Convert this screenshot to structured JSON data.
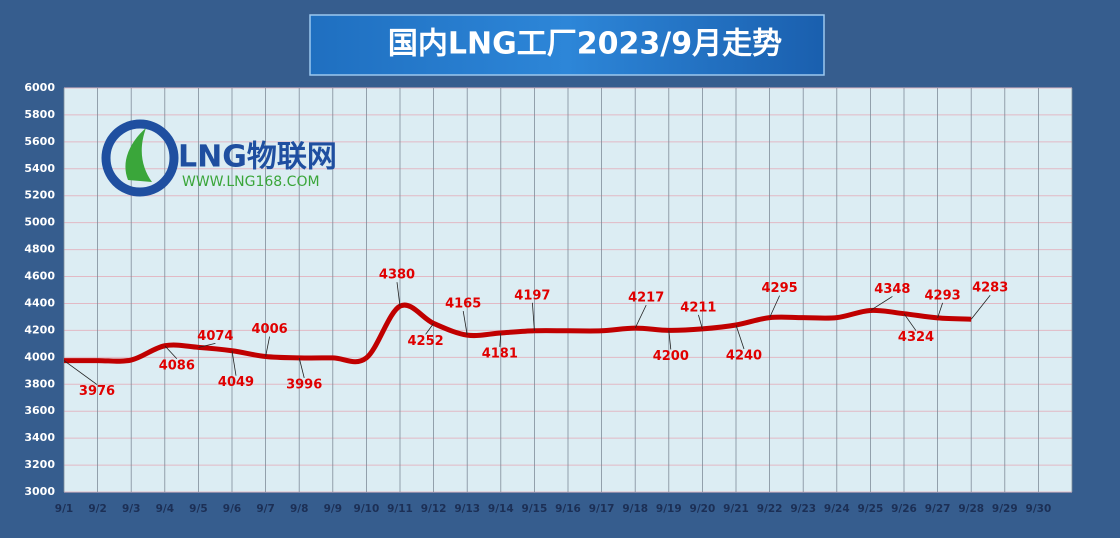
{
  "chart_data": {
    "type": "line",
    "title": "国内LNG工厂2023/9月走势",
    "logo": {
      "name": "LNG物联网",
      "url": "WWW.LNG168.COM"
    },
    "categories": [
      "9/1",
      "9/2",
      "9/3",
      "9/4",
      "9/5",
      "9/6",
      "9/7",
      "9/8",
      "9/9",
      "9/10",
      "9/11",
      "9/12",
      "9/13",
      "9/14",
      "9/15",
      "9/16",
      "9/17",
      "9/18",
      "9/19",
      "9/20",
      "9/21",
      "9/22",
      "9/23",
      "9/24",
      "9/25",
      "9/26",
      "9/27",
      "9/28",
      "9/29",
      "9/30"
    ],
    "series": [
      {
        "color": "#c00000",
        "values": [
          3976,
          3976,
          3980,
          4086,
          4074,
          4049,
          4006,
          3996,
          3996,
          3996,
          4380,
          4252,
          4165,
          4181,
          4197,
          4197,
          4197,
          4217,
          4200,
          4211,
          4240,
          4295,
          4295,
          4295,
          4348,
          4324,
          4293,
          4283,
          null,
          null
        ],
        "value_labels": [
          "3976",
          null,
          null,
          "4086",
          "4074",
          "4049",
          "4006",
          "3996",
          null,
          null,
          "4380",
          "4252",
          "4165",
          "4181",
          "4197",
          null,
          null,
          "4217",
          "4200",
          "4211",
          "4240",
          "4295",
          null,
          null,
          "4348",
          "4324",
          "4293",
          "4283",
          null,
          null
        ]
      }
    ],
    "ylim": [
      3000,
      6000
    ],
    "yticks": [
      3000,
      3200,
      3400,
      3600,
      3800,
      4000,
      4200,
      4400,
      4600,
      4800,
      5000,
      5200,
      5400,
      5600,
      5800,
      6000
    ],
    "grid": true
  }
}
